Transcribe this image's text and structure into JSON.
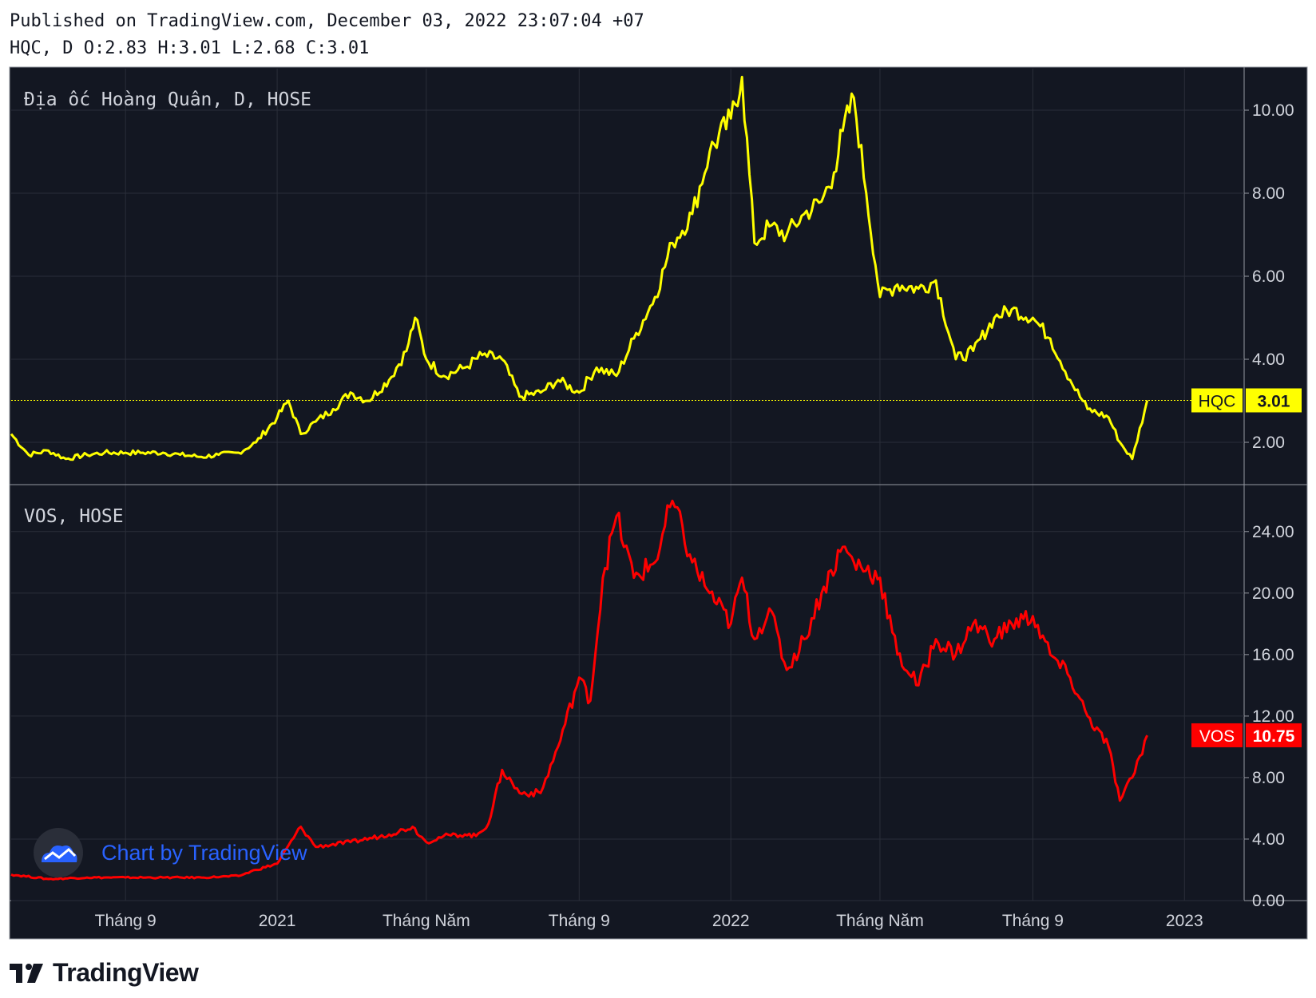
{
  "header": {
    "published": "Published on TradingView.com, December 03, 2022 23:07:04 +07",
    "ohlc": "HQC, D O:2.83 H:3.01 L:2.68 C:3.01"
  },
  "branding": {
    "watermark": "Chart by TradingView",
    "footer_logo_text": "TradingView"
  },
  "colors": {
    "background": "#131722",
    "grid": "#2a2e39",
    "hqc": "#ffff00",
    "vos": "#ff0000",
    "text": "#d1d4dc",
    "watermark": "#2962ff"
  },
  "chart_data": [
    {
      "type": "line",
      "panel_title": "Địa ốc Hoàng Quân, D, HOSE",
      "series": [
        {
          "name": "HQC",
          "last_value": "3.01",
          "x": [
            "2020-06-01",
            "2020-06-15",
            "2020-07-01",
            "2020-07-15",
            "2020-08-01",
            "2020-08-15",
            "2020-09-01",
            "2020-09-15",
            "2020-10-01",
            "2020-10-15",
            "2020-11-01",
            "2020-11-15",
            "2020-12-01",
            "2020-12-15",
            "2021-01-01",
            "2021-01-10",
            "2021-01-20",
            "2021-02-01",
            "2021-02-15",
            "2021-03-01",
            "2021-03-15",
            "2021-04-01",
            "2021-04-15",
            "2021-04-22",
            "2021-05-01",
            "2021-05-15",
            "2021-06-01",
            "2021-06-15",
            "2021-07-01",
            "2021-07-15",
            "2021-08-01",
            "2021-08-15",
            "2021-09-01",
            "2021-09-15",
            "2021-10-01",
            "2021-10-15",
            "2021-11-01",
            "2021-11-15",
            "2021-12-01",
            "2021-12-15",
            "2022-01-01",
            "2022-01-10",
            "2022-01-20",
            "2022-02-01",
            "2022-02-15",
            "2022-03-01",
            "2022-03-15",
            "2022-03-25",
            "2022-04-01",
            "2022-04-10",
            "2022-04-20",
            "2022-05-01",
            "2022-05-15",
            "2022-06-01",
            "2022-06-15",
            "2022-07-01",
            "2022-07-15",
            "2022-08-01",
            "2022-08-15",
            "2022-09-01",
            "2022-09-15",
            "2022-10-01",
            "2022-10-15",
            "2022-11-01",
            "2022-11-10",
            "2022-11-20",
            "2022-12-02"
          ],
          "values": [
            2.2,
            1.7,
            1.8,
            1.6,
            1.7,
            1.75,
            1.75,
            1.75,
            1.75,
            1.7,
            1.65,
            1.7,
            1.75,
            2.0,
            2.6,
            3.0,
            2.2,
            2.5,
            2.8,
            3.2,
            3.0,
            3.5,
            4.2,
            5.0,
            4.0,
            3.6,
            3.8,
            4.1,
            4.0,
            3.1,
            3.2,
            3.5,
            3.2,
            3.8,
            3.6,
            4.5,
            5.5,
            6.8,
            7.5,
            9.0,
            9.8,
            10.8,
            6.8,
            7.2,
            7.0,
            7.5,
            7.8,
            8.5,
            9.5,
            10.3,
            8.0,
            5.5,
            5.8,
            5.7,
            5.9,
            4.0,
            4.2,
            5.0,
            5.2,
            5.0,
            4.5,
            3.5,
            2.8,
            2.6,
            2.0,
            1.6,
            3.01
          ],
          "ylim": [
            1.0,
            11.0
          ],
          "ticks": [
            "2.00",
            "4.00",
            "6.00",
            "8.00",
            "10.00"
          ]
        }
      ]
    },
    {
      "type": "line",
      "panel_title": "VOS, HOSE",
      "series": [
        {
          "name": "VOS",
          "last_value": "10.75",
          "x": [
            "2020-06-01",
            "2020-07-01",
            "2020-08-01",
            "2020-09-01",
            "2020-10-01",
            "2020-11-01",
            "2020-12-01",
            "2020-12-15",
            "2021-01-01",
            "2021-01-20",
            "2021-02-01",
            "2021-03-01",
            "2021-04-01",
            "2021-04-20",
            "2021-05-01",
            "2021-05-15",
            "2021-06-01",
            "2021-06-10",
            "2021-06-20",
            "2021-07-01",
            "2021-07-15",
            "2021-08-01",
            "2021-08-15",
            "2021-09-01",
            "2021-09-10",
            "2021-09-20",
            "2021-10-01",
            "2021-10-15",
            "2021-11-01",
            "2021-11-15",
            "2021-12-01",
            "2021-12-15",
            "2022-01-01",
            "2022-01-10",
            "2022-01-20",
            "2022-02-01",
            "2022-02-15",
            "2022-03-01",
            "2022-03-15",
            "2022-04-01",
            "2022-04-10",
            "2022-05-01",
            "2022-05-15",
            "2022-06-01",
            "2022-06-15",
            "2022-07-01",
            "2022-07-15",
            "2022-08-01",
            "2022-08-15",
            "2022-09-01",
            "2022-09-15",
            "2022-10-01",
            "2022-10-15",
            "2022-11-01",
            "2022-11-10",
            "2022-11-20",
            "2022-12-02"
          ],
          "values": [
            1.7,
            1.4,
            1.5,
            1.5,
            1.5,
            1.5,
            1.6,
            2.0,
            2.4,
            4.8,
            3.5,
            3.8,
            4.3,
            4.8,
            3.8,
            4.2,
            4.3,
            4.2,
            5.0,
            8.5,
            7.0,
            7.0,
            10.0,
            14.5,
            13.0,
            21.0,
            25.0,
            21.0,
            22.0,
            26.0,
            22.0,
            20.0,
            18.0,
            21.0,
            17.0,
            19.0,
            15.0,
            17.0,
            20.0,
            23.0,
            22.0,
            21.0,
            16.0,
            14.0,
            17.0,
            16.0,
            18.0,
            17.0,
            18.0,
            18.5,
            16.0,
            14.5,
            12.0,
            10.0,
            6.5,
            8.0,
            10.75
          ],
          "ylim": [
            0,
            27
          ],
          "ticks": [
            "0.00",
            "4.00",
            "8.00",
            "12.00",
            "16.00",
            "20.00",
            "24.00"
          ]
        }
      ]
    }
  ],
  "x_axis": {
    "labels": [
      "Tháng 9",
      "2021",
      "Tháng Năm",
      "Tháng 9",
      "2022",
      "Tháng Năm",
      "Tháng 9",
      "2023"
    ],
    "label_dates": [
      "2020-09-01",
      "2021-01-01",
      "2021-05-01",
      "2021-09-01",
      "2022-01-01",
      "2022-05-01",
      "2022-09-01",
      "2023-01-01"
    ],
    "start": "2020-06-01",
    "end": "2023-02-18"
  }
}
